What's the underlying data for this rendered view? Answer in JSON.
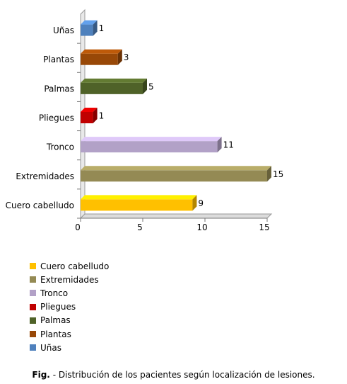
{
  "chart_data": {
    "type": "bar",
    "orientation": "horizontal",
    "style": "3d",
    "categories": [
      "Cuero cabelludo",
      "Extremidades",
      "Tronco",
      "Pliegues",
      "Palmas",
      "Plantas",
      "Uñas"
    ],
    "values": [
      9,
      15,
      11,
      1,
      5,
      3,
      1
    ],
    "colors": [
      "#ffc000",
      "#948a54",
      "#b2a1c7",
      "#c00000",
      "#4f6228",
      "#984807",
      "#4f81bd"
    ],
    "xlim": [
      0,
      15
    ],
    "xticks": [
      0,
      5,
      10,
      15
    ],
    "grid": false,
    "data_labels": true,
    "legend": {
      "position": "bottom-left",
      "entries": [
        "Cuero cabelludo",
        "Extremidades",
        "Tronco",
        "Pliegues",
        "Palmas",
        "Plantas",
        "Uñas"
      ]
    }
  },
  "caption": {
    "label": "Fig.",
    "text": " - Distribución de los pacientes según localización de lesiones."
  }
}
